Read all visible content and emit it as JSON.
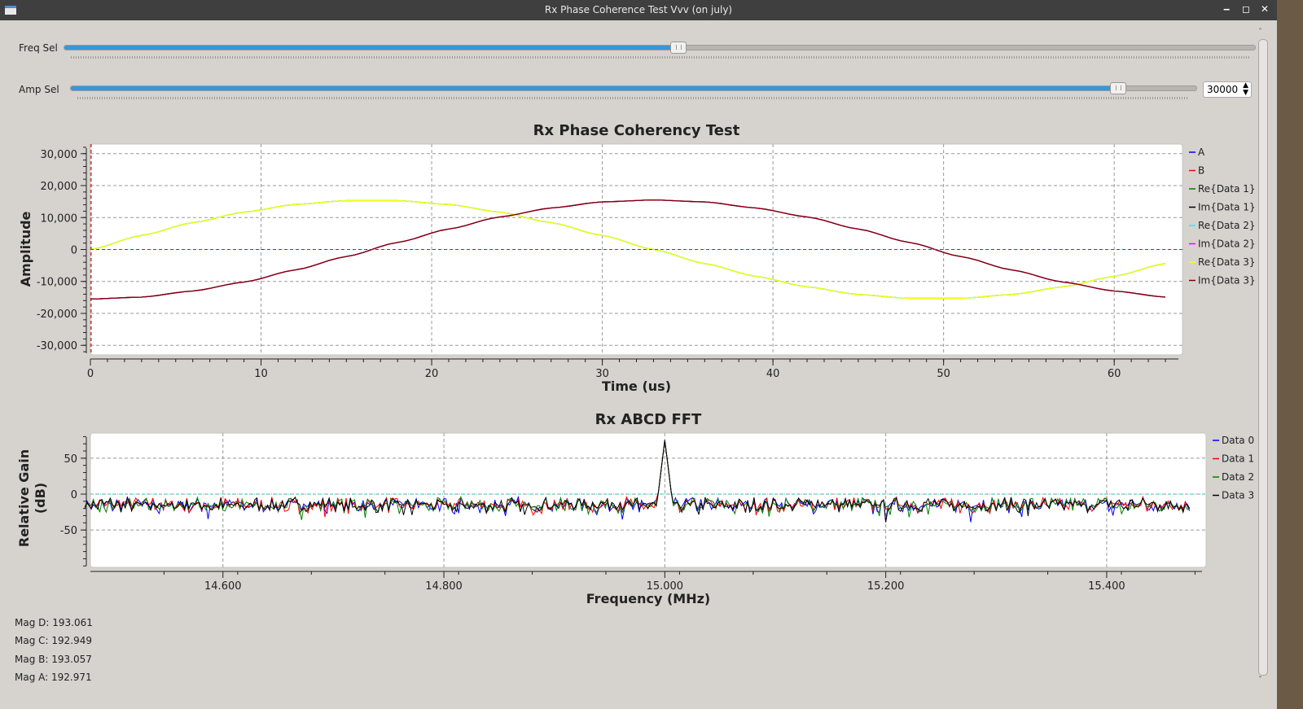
{
  "window": {
    "title": "Rx Phase Coherence Test Vvv (on july)",
    "minimize": "‒",
    "maximize": "◻",
    "close": "✕"
  },
  "controls": {
    "freq_sel": {
      "label": "Freq Sel",
      "position_fraction": 0.515
    },
    "amp_sel": {
      "label": "Amp Sel",
      "position_fraction": 0.93,
      "value": "30000"
    }
  },
  "chart_data": [
    {
      "type": "line",
      "title": "Rx Phase Coherency Test",
      "xlabel": "Time (us)",
      "ylabel": "Amplitude",
      "xlim": [
        0,
        64
      ],
      "ylim": [
        -33000,
        33000
      ],
      "xticks": [
        "0",
        "10",
        "20",
        "30",
        "40",
        "50",
        "60"
      ],
      "xtick_values": [
        0,
        10,
        20,
        30,
        40,
        50,
        60
      ],
      "yticks": [
        "30,000",
        "20,000",
        "10,000",
        "0",
        "-10,000",
        "-20,000",
        "-30,000"
      ],
      "ytick_values": [
        30000,
        20000,
        10000,
        0,
        -10000,
        -20000,
        -30000
      ],
      "grid": true,
      "legend_position": "right",
      "x": [
        0,
        3,
        6,
        9,
        12,
        15,
        18,
        21,
        24,
        27,
        30,
        33,
        36,
        39,
        42,
        45,
        48,
        51,
        54,
        57,
        60,
        63
      ],
      "waveforms": {
        "re": [
          0,
          4400,
          8400,
          11700,
          14100,
          15300,
          15300,
          14100,
          11700,
          8400,
          4400,
          0,
          -4400,
          -8400,
          -11700,
          -14100,
          -15300,
          -15300,
          -14100,
          -11700,
          -8400,
          -4400
        ],
        "im": [
          -15500,
          -14900,
          -13000,
          -10200,
          -6400,
          -2200,
          2200,
          6400,
          10200,
          13000,
          14900,
          15500,
          14900,
          13000,
          10200,
          6400,
          2200,
          -2200,
          -6400,
          -10200,
          -13000,
          -14900
        ]
      },
      "series": [
        {
          "name": "A",
          "color": "#0000ff",
          "waveform": null
        },
        {
          "name": "B",
          "color": "#ff0000",
          "waveform": null
        },
        {
          "name": "Re{Data 1}",
          "color": "#008000",
          "waveform": "re"
        },
        {
          "name": "Im{Data 1}",
          "color": "#000000",
          "waveform": "im"
        },
        {
          "name": "Re{Data 2}",
          "color": "#00ffff",
          "waveform": "re"
        },
        {
          "name": "Im{Data 2}",
          "color": "#ff00ff",
          "waveform": "im"
        },
        {
          "name": "Re{Data 3}",
          "color": "#ffff00",
          "waveform": "re"
        },
        {
          "name": "Im{Data 3}",
          "color": "#800000",
          "waveform": "im"
        }
      ],
      "trigger_marker": {
        "time": 0,
        "level": 0,
        "color": "#ff0000"
      }
    },
    {
      "type": "line",
      "title": "Rx ABCD FFT",
      "xlabel": "Frequency (MHz)",
      "ylabel": "Relative Gain (dB)",
      "xlim": [
        14.48,
        15.49
      ],
      "ylim": [
        -102,
        85
      ],
      "xticks": [
        "14.600",
        "14.800",
        "15.000",
        "15.200",
        "15.400"
      ],
      "xtick_values": [
        14.6,
        14.8,
        15.0,
        15.2,
        15.4
      ],
      "yticks": [
        "50",
        "0",
        "-50"
      ],
      "ytick_values": [
        50,
        0,
        -50
      ],
      "grid": true,
      "legend_position": "right",
      "freq_range": [
        14.475,
        15.475
      ],
      "noise_floor_db": -15,
      "peak": {
        "freq": 15.0,
        "db": 75
      },
      "series": [
        {
          "name": "Data 0",
          "color": "#0000ff"
        },
        {
          "name": "Data 1",
          "color": "#ff0000"
        },
        {
          "name": "Data 2",
          "color": "#008000"
        },
        {
          "name": "Data 3",
          "color": "#000000"
        }
      ]
    }
  ],
  "magnitudes": [
    {
      "label": "Mag D:",
      "value": "193.061"
    },
    {
      "label": "Mag C:",
      "value": "192.949"
    },
    {
      "label": "Mag B:",
      "value": "193.057"
    },
    {
      "label": "Mag A:",
      "value": "192.971"
    }
  ]
}
